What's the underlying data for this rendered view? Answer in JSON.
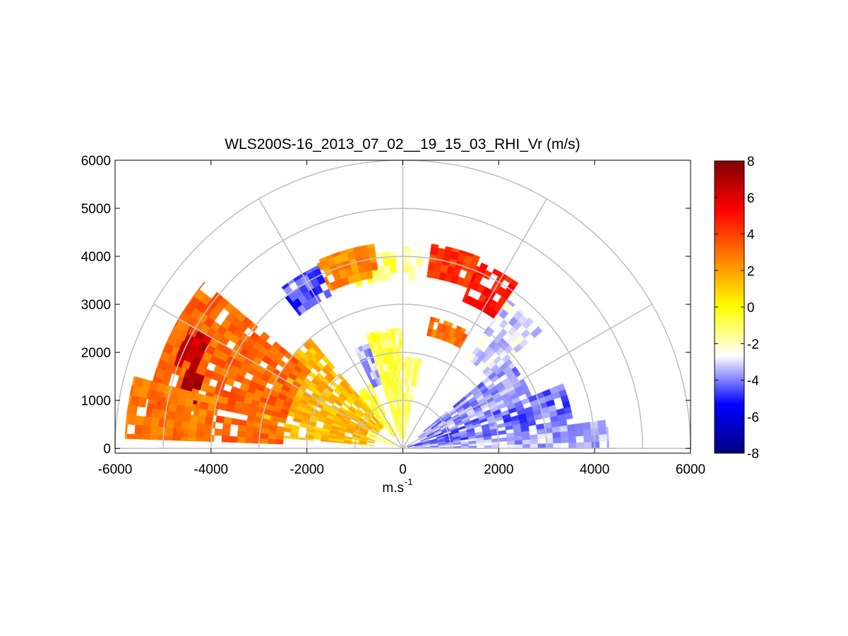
{
  "chart_data": {
    "type": "heatmap",
    "subtype": "polar-rhi",
    "title": "WLS200S-16_2013_07_02__19_15_03_RHI_Vr (m/s)",
    "xlabel": "m.s",
    "xlabel_superscript": "-1",
    "ylabel": "",
    "xlim": [
      -6000,
      6000
    ],
    "ylim": [
      -100,
      6000
    ],
    "xticks": [
      "-6000",
      "-4000",
      "-2000",
      "0",
      "2000",
      "4000",
      "6000"
    ],
    "yticks": [
      "0",
      "1000",
      "2000",
      "3000",
      "4000",
      "5000",
      "6000"
    ],
    "grid": true,
    "polar_grid": {
      "range_rings": [
        1000,
        2000,
        3000,
        4000,
        5000,
        6000
      ],
      "spokes_deg": [
        0,
        30,
        60,
        90,
        120,
        150,
        180
      ]
    },
    "colorbar": {
      "min": -8,
      "max": 8,
      "ticks": [
        "8",
        "6",
        "4",
        "2",
        "0",
        "-2",
        "-4",
        "-6",
        "-8"
      ],
      "colors": [
        "#00007f",
        "#0000ff",
        "#ffffff",
        "#ffff00",
        "#ff8000",
        "#ff0000",
        "#7f0000"
      ]
    },
    "sectors": [
      {
        "az": [
          0,
          8
        ],
        "r": [
          100,
          4300
        ],
        "v": -3.5
      },
      {
        "az": [
          8,
          22
        ],
        "r": [
          100,
          3600
        ],
        "v": -4.2
      },
      {
        "az": [
          22,
          40
        ],
        "r": [
          400,
          2900
        ],
        "v": -3.8
      },
      {
        "az": [
          40,
          55
        ],
        "r": [
          2300,
          3800
        ],
        "v": -3.0
      },
      {
        "az": [
          55,
          68
        ],
        "r": [
          3300,
          4200
        ],
        "v": 4.8
      },
      {
        "az": [
          68,
          82
        ],
        "r": [
          3600,
          4300
        ],
        "v": 4.2
      },
      {
        "az": [
          60,
          78
        ],
        "r": [
          2400,
          2800
        ],
        "v": 3.0
      },
      {
        "az": [
          78,
          90
        ],
        "r": [
          200,
          1900
        ],
        "v": -1.2
      },
      {
        "az": [
          84,
          90
        ],
        "r": [
          3500,
          4200
        ],
        "v": -2.0
      },
      {
        "az": [
          90,
          108
        ],
        "r": [
          200,
          2500
        ],
        "v": -0.8
      },
      {
        "az": [
          92,
          108
        ],
        "r": [
          3500,
          4100
        ],
        "v": -1.0
      },
      {
        "az": [
          98,
          115
        ],
        "r": [
          3600,
          4300
        ],
        "v": 2.5
      },
      {
        "az": [
          108,
          116
        ],
        "r": [
          1400,
          2300
        ],
        "v": -3.5
      },
      {
        "az": [
          115,
          128
        ],
        "r": [
          3500,
          4200
        ],
        "v": -4.5
      },
      {
        "az": [
          116,
          130
        ],
        "r": [
          300,
          1500
        ],
        "v": -0.6
      },
      {
        "az": [
          130,
          175
        ],
        "r": [
          600,
          3000
        ],
        "v": 1.5
      },
      {
        "az": [
          140,
          178
        ],
        "r": [
          2500,
          5400
        ],
        "v": 3.2
      },
      {
        "az": [
          150,
          160
        ],
        "r": [
          4600,
          5100
        ],
        "v": 6.5
      },
      {
        "az": [
          160,
          168
        ],
        "r": [
          4400,
          4800
        ],
        "v": 7.5
      },
      {
        "az": [
          165,
          178
        ],
        "r": [
          4000,
          5800
        ],
        "v": 2.8
      },
      {
        "az": [
          152,
          164
        ],
        "r": [
          100,
          800
        ],
        "v": -1.5
      }
    ]
  }
}
